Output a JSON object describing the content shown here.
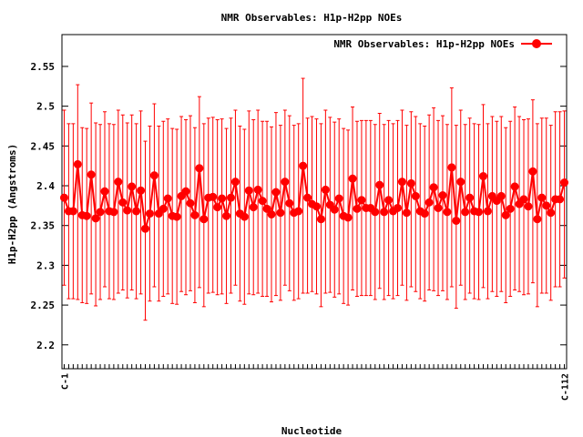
{
  "chart_data": {
    "type": "line",
    "title": "NMR Observables: H1p-H2pp NOEs",
    "xlabel": "Nucleotide",
    "ylabel": "H1p-H2pp (Angstroms)",
    "ylim": [
      2.17,
      2.59
    ],
    "yticks": [
      2.2,
      2.25,
      2.3,
      2.35,
      2.4,
      2.45,
      2.5,
      2.55
    ],
    "ytick_labels": [
      "2.2",
      "2.25",
      "2.3",
      "2.35",
      "2.4",
      "2.45",
      "2.5",
      "2.55"
    ],
    "xtick_first": "C-1",
    "xtick_last": "C-112",
    "legend": "top-right",
    "grid": false,
    "series": [
      {
        "name": "NMR Observables: H1p-H2pp NOEs",
        "color": "#ff0000",
        "marker": "circle",
        "x": [
          1,
          2,
          3,
          4,
          5,
          6,
          7,
          8,
          9,
          10,
          11,
          12,
          13,
          14,
          15,
          16,
          17,
          18,
          19,
          20,
          21,
          22,
          23,
          24,
          25,
          26,
          27,
          28,
          29,
          30,
          31,
          32,
          33,
          34,
          35,
          36,
          37,
          38,
          39,
          40,
          41,
          42,
          43,
          44,
          45,
          46,
          47,
          48,
          49,
          50,
          51,
          52,
          53,
          54,
          55,
          56,
          57,
          58,
          59,
          60,
          61,
          62,
          63,
          64,
          65,
          66,
          67,
          68,
          69,
          70,
          71,
          72,
          73,
          74,
          75,
          76,
          77,
          78,
          79,
          80,
          81,
          82,
          83,
          84,
          85,
          86,
          87,
          88,
          89,
          90,
          91,
          92,
          93,
          94,
          95,
          96,
          97,
          98,
          99,
          100,
          101,
          102,
          103,
          104,
          105,
          106,
          107,
          108,
          109,
          110,
          111,
          112
        ],
        "values": [
          2.385,
          2.368,
          2.368,
          2.427,
          2.363,
          2.362,
          2.414,
          2.359,
          2.367,
          2.393,
          2.368,
          2.367,
          2.405,
          2.379,
          2.369,
          2.399,
          2.368,
          2.394,
          2.346,
          2.365,
          2.413,
          2.365,
          2.371,
          2.384,
          2.362,
          2.361,
          2.387,
          2.393,
          2.378,
          2.363,
          2.422,
          2.358,
          2.385,
          2.386,
          2.373,
          2.384,
          2.362,
          2.385,
          2.405,
          2.365,
          2.361,
          2.394,
          2.373,
          2.395,
          2.381,
          2.371,
          2.364,
          2.392,
          2.366,
          2.405,
          2.378,
          2.366,
          2.368,
          2.425,
          2.385,
          2.377,
          2.374,
          2.358,
          2.395,
          2.376,
          2.37,
          2.384,
          2.362,
          2.36,
          2.409,
          2.371,
          2.382,
          2.372,
          2.372,
          2.367,
          2.401,
          2.367,
          2.382,
          2.368,
          2.372,
          2.405,
          2.366,
          2.403,
          2.387,
          2.368,
          2.365,
          2.379,
          2.398,
          2.372,
          2.388,
          2.367,
          2.423,
          2.356,
          2.405,
          2.367,
          2.385,
          2.368,
          2.367,
          2.412,
          2.368,
          2.387,
          2.381,
          2.387,
          2.363,
          2.371,
          2.399,
          2.377,
          2.383,
          2.374,
          2.418,
          2.358,
          2.385,
          2.375,
          2.366,
          2.383,
          2.383,
          2.404
        ],
        "error_minus": [
          0.11,
          0.11,
          0.11,
          0.17,
          0.11,
          0.11,
          0.15,
          0.11,
          0.11,
          0.12,
          0.11,
          0.11,
          0.14,
          0.11,
          0.11,
          0.13,
          0.11,
          0.13,
          0.115,
          0.11,
          0.14,
          0.11,
          0.11,
          0.12,
          0.11,
          0.11,
          0.12,
          0.13,
          0.11,
          0.11,
          0.15,
          0.11,
          0.12,
          0.12,
          0.11,
          0.12,
          0.11,
          0.12,
          0.13,
          0.11,
          0.11,
          0.13,
          0.11,
          0.13,
          0.12,
          0.11,
          0.11,
          0.13,
          0.11,
          0.13,
          0.11,
          0.11,
          0.11,
          0.16,
          0.12,
          0.11,
          0.11,
          0.11,
          0.13,
          0.11,
          0.11,
          0.12,
          0.11,
          0.11,
          0.14,
          0.11,
          0.12,
          0.11,
          0.11,
          0.11,
          0.13,
          0.11,
          0.12,
          0.11,
          0.11,
          0.13,
          0.11,
          0.13,
          0.12,
          0.11,
          0.11,
          0.11,
          0.13,
          0.11,
          0.12,
          0.11,
          0.15,
          0.11,
          0.13,
          0.11,
          0.12,
          0.11,
          0.11,
          0.14,
          0.11,
          0.12,
          0.12,
          0.12,
          0.11,
          0.11,
          0.13,
          0.11,
          0.12,
          0.11,
          0.14,
          0.11,
          0.12,
          0.11,
          0.11,
          0.11,
          0.11,
          0.12
        ],
        "error_plus": [
          0.11,
          0.11,
          0.11,
          0.1,
          0.11,
          0.11,
          0.09,
          0.12,
          0.11,
          0.1,
          0.11,
          0.11,
          0.09,
          0.11,
          0.11,
          0.09,
          0.11,
          0.1,
          0.11,
          0.11,
          0.09,
          0.11,
          0.11,
          0.1,
          0.11,
          0.11,
          0.1,
          0.09,
          0.11,
          0.11,
          0.09,
          0.12,
          0.1,
          0.1,
          0.11,
          0.1,
          0.11,
          0.1,
          0.09,
          0.11,
          0.11,
          0.1,
          0.11,
          0.1,
          0.1,
          0.11,
          0.11,
          0.1,
          0.11,
          0.09,
          0.11,
          0.11,
          0.11,
          0.11,
          0.1,
          0.11,
          0.11,
          0.12,
          0.1,
          0.11,
          0.11,
          0.1,
          0.11,
          0.11,
          0.09,
          0.11,
          0.1,
          0.11,
          0.11,
          0.11,
          0.09,
          0.11,
          0.1,
          0.11,
          0.11,
          0.09,
          0.11,
          0.09,
          0.1,
          0.11,
          0.11,
          0.11,
          0.1,
          0.11,
          0.1,
          0.11,
          0.1,
          0.12,
          0.09,
          0.11,
          0.1,
          0.11,
          0.11,
          0.09,
          0.11,
          0.1,
          0.1,
          0.1,
          0.11,
          0.11,
          0.1,
          0.11,
          0.1,
          0.11,
          0.09,
          0.12,
          0.1,
          0.11,
          0.11,
          0.11,
          0.11,
          0.09
        ]
      }
    ]
  }
}
